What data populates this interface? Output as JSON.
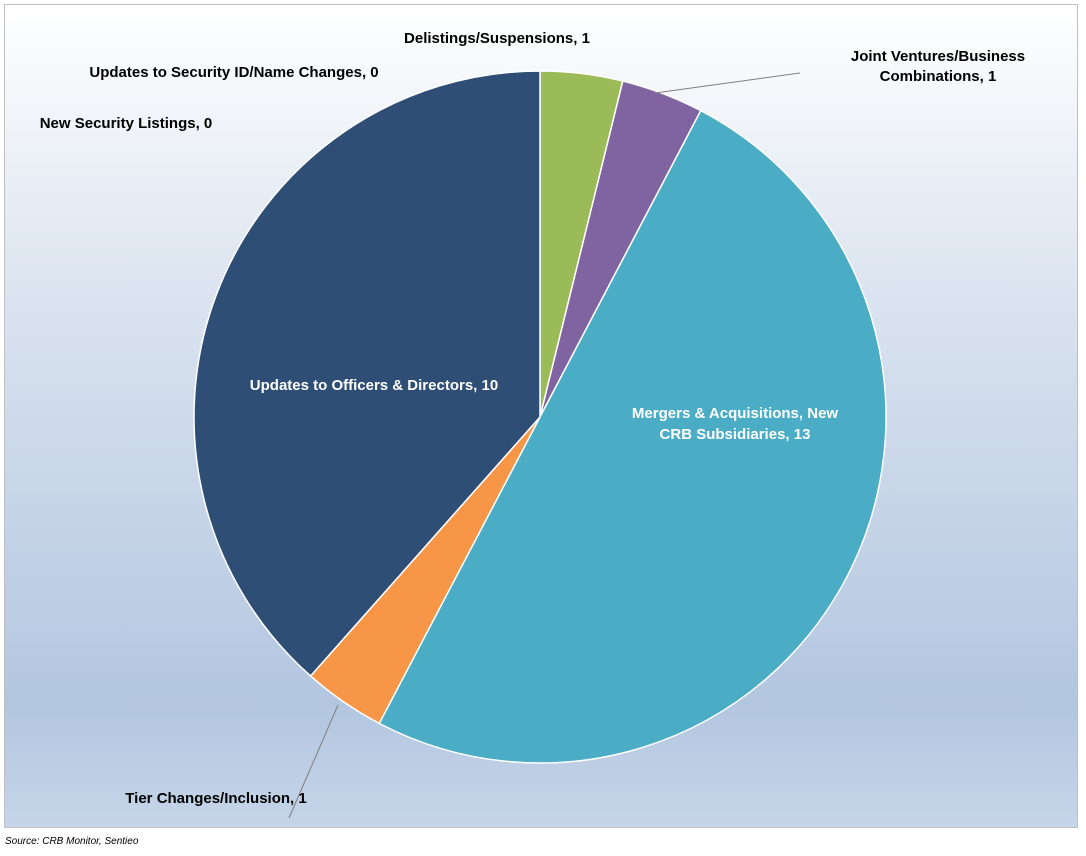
{
  "chart_data": {
    "type": "pie",
    "title": "",
    "slices": [
      {
        "label": "Delistings/Suspensions",
        "value": 1,
        "color": "#9bbb59"
      },
      {
        "label": "Joint Ventures/Business Combinations",
        "value": 1,
        "color": "#8064a2"
      },
      {
        "label": "Mergers & Acquisitions, New CRB Subsidiaries",
        "value": 13,
        "color": "#4bacc6"
      },
      {
        "label": "Tier Changes/Inclusion",
        "value": 1,
        "color": "#f79646"
      },
      {
        "label": "Updates to Officers & Directors",
        "value": 10,
        "color": "#2f4e75"
      },
      {
        "label": "New Security Listings",
        "value": 0,
        "color": "#4f81bd"
      },
      {
        "label": "Updates to Security ID/Name Changes",
        "value": 0,
        "color": "#c0504d"
      }
    ],
    "data_labels": {
      "delistings": "Delistings/Suspensions, 1",
      "joint_ventures_line1": "Joint Ventures/Business",
      "joint_ventures_line2": "Combinations, 1",
      "mergers_line1": "Mergers & Acquisitions, New",
      "mergers_line2": "CRB Subsidiaries, 13",
      "tier_changes": "Tier Changes/Inclusion, 1",
      "officers_directors": "Updates to Officers & Directors, 10",
      "new_listings": "New Security Listings, 0",
      "security_id": "Updates to Security ID/Name Changes, 0"
    },
    "legend": "none"
  },
  "source": "Source: CRB Monitor, Sentieo"
}
